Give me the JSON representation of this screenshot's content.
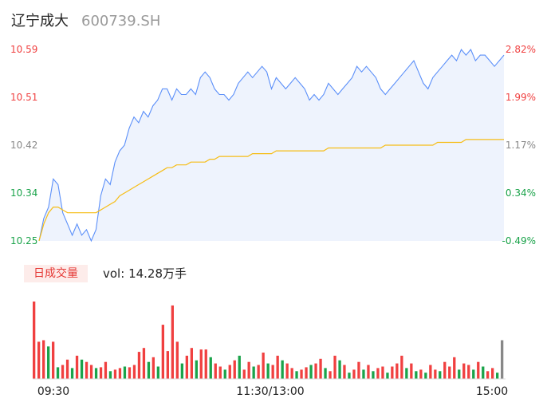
{
  "stock": {
    "name": "辽宁成大",
    "code": "600739.SH"
  },
  "volume_panel": {
    "label": "日成交量",
    "vol_prefix": "vol:",
    "vol_value": "14.28万手"
  },
  "colors": {
    "price": "#5b8ff9",
    "avg": "#f6bd16",
    "up": "#f04040",
    "down": "#1aa34a",
    "neutral": "#888888",
    "fill": "#eef3fd"
  },
  "chart_data": {
    "type": "line",
    "price_axis": {
      "ticks": [
        "10.59",
        "10.51",
        "10.42",
        "10.34",
        "10.25"
      ],
      "ylim": [
        10.25,
        10.59
      ]
    },
    "pct_axis": {
      "ticks": [
        "2.82%",
        "1.99%",
        "1.17%",
        "0.34%",
        "-0.49%"
      ]
    },
    "x_ticks": [
      "09:30",
      "11:30/13:00",
      "15:00"
    ],
    "series": [
      {
        "values": [
          10.25,
          10.29,
          10.31,
          10.36,
          10.35,
          10.3,
          10.28,
          10.26,
          10.28,
          10.26,
          10.27,
          10.25,
          10.27,
          10.33,
          10.36,
          10.35,
          10.39,
          10.41,
          10.42,
          10.45,
          10.47,
          10.46,
          10.48,
          10.47,
          10.49,
          10.5,
          10.52,
          10.52,
          10.5,
          10.52,
          10.51,
          10.51,
          10.52,
          10.51,
          10.54,
          10.55,
          10.54,
          10.52,
          10.51,
          10.51,
          10.5,
          10.51,
          10.53,
          10.54,
          10.55,
          10.54,
          10.55,
          10.56,
          10.55,
          10.52,
          10.54,
          10.53,
          10.52,
          10.53,
          10.54,
          10.53,
          10.52,
          10.5,
          10.51,
          10.5,
          10.51,
          10.53,
          10.52,
          10.51,
          10.52,
          10.53,
          10.54,
          10.56,
          10.55,
          10.56,
          10.55,
          10.54,
          10.52,
          10.51,
          10.52,
          10.53,
          10.54,
          10.55,
          10.56,
          10.57,
          10.55,
          10.53,
          10.52,
          10.54,
          10.55,
          10.56,
          10.57,
          10.58,
          10.57,
          10.59,
          10.58,
          10.59,
          10.57,
          10.58,
          10.58,
          10.57,
          10.56,
          10.57,
          10.58
        ]
      },
      {
        "values": [
          10.25,
          10.28,
          10.3,
          10.31,
          10.31,
          10.305,
          10.3,
          10.3,
          10.3,
          10.3,
          10.3,
          10.3,
          10.3,
          10.305,
          10.31,
          10.315,
          10.32,
          10.33,
          10.335,
          10.34,
          10.345,
          10.35,
          10.355,
          10.36,
          10.365,
          10.37,
          10.375,
          10.38,
          10.38,
          10.385,
          10.385,
          10.385,
          10.39,
          10.39,
          10.39,
          10.39,
          10.395,
          10.395,
          10.4,
          10.4,
          10.4,
          10.4,
          10.4,
          10.4,
          10.4,
          10.405,
          10.405,
          10.405,
          10.405,
          10.405,
          10.41,
          10.41,
          10.41,
          10.41,
          10.41,
          10.41,
          10.41,
          10.41,
          10.41,
          10.41,
          10.41,
          10.415,
          10.415,
          10.415,
          10.415,
          10.415,
          10.415,
          10.415,
          10.415,
          10.415,
          10.415,
          10.415,
          10.415,
          10.42,
          10.42,
          10.42,
          10.42,
          10.42,
          10.42,
          10.42,
          10.42,
          10.42,
          10.42,
          10.42,
          10.425,
          10.425,
          10.425,
          10.425,
          10.425,
          10.425,
          10.43,
          10.43,
          10.43,
          10.43,
          10.43,
          10.43,
          10.43,
          10.43,
          10.43
        ]
      }
    ],
    "volume": {
      "values": [
        100,
        48,
        50,
        42,
        48,
        15,
        18,
        25,
        14,
        30,
        25,
        22,
        18,
        14,
        15,
        22,
        10,
        12,
        14,
        16,
        15,
        18,
        35,
        40,
        22,
        28,
        16,
        70,
        36,
        95,
        48,
        20,
        30,
        40,
        24,
        38,
        38,
        28,
        20,
        16,
        12,
        18,
        24,
        30,
        12,
        22,
        16,
        18,
        34,
        20,
        18,
        30,
        24,
        20,
        14,
        10,
        12,
        15,
        18,
        20,
        26,
        14,
        10,
        30,
        24,
        18,
        8,
        12,
        22,
        12,
        18,
        10,
        14,
        16,
        8,
        16,
        20,
        30,
        14,
        20,
        10,
        12,
        8,
        18,
        12,
        10,
        22,
        16,
        28,
        12,
        20,
        18,
        12,
        22,
        16,
        10,
        14,
        8,
        50
      ],
      "colors": [
        "up",
        "up",
        "up",
        "down",
        "up",
        "down",
        "up",
        "up",
        "down",
        "up",
        "down",
        "up",
        "up",
        "down",
        "up",
        "up",
        "down",
        "up",
        "up",
        "down",
        "up",
        "up",
        "up",
        "up",
        "down",
        "up",
        "down",
        "up",
        "up",
        "up",
        "up",
        "down",
        "up",
        "up",
        "down",
        "up",
        "up",
        "down",
        "up",
        "up",
        "down",
        "up",
        "up",
        "down",
        "up",
        "up",
        "down",
        "up",
        "up",
        "down",
        "up",
        "up",
        "down",
        "up",
        "up",
        "down",
        "up",
        "up",
        "down",
        "up",
        "up",
        "down",
        "up",
        "up",
        "down",
        "up",
        "down",
        "up",
        "up",
        "down",
        "up",
        "down",
        "up",
        "up",
        "down",
        "up",
        "up",
        "up",
        "down",
        "up",
        "down",
        "up",
        "down",
        "up",
        "up",
        "down",
        "up",
        "up",
        "up",
        "down",
        "up",
        "up",
        "down",
        "up",
        "down",
        "up",
        "up",
        "down",
        "neutral"
      ]
    }
  }
}
